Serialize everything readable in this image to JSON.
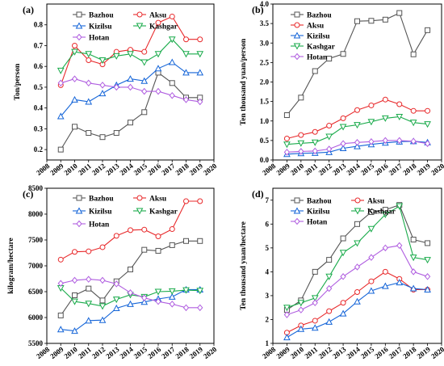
{
  "chart_data": [
    {
      "panel": "(a)",
      "type": "line",
      "ylabel": "Ton/person",
      "xlim": [
        2008,
        2020
      ],
      "ylim": [
        0.15,
        0.9
      ],
      "xticks": [
        2008,
        2009,
        2010,
        2011,
        2012,
        2013,
        2014,
        2015,
        2016,
        2017,
        2018,
        2019,
        2020
      ],
      "yticks": [
        0.2,
        0.3,
        0.4,
        0.5,
        0.6,
        0.7,
        0.8
      ],
      "ytick_labels": [
        "0.2",
        "0.3",
        "0.4",
        "0.5",
        "0.6",
        "0.7",
        "0.8"
      ],
      "x": [
        2009,
        2010,
        2011,
        2012,
        2013,
        2014,
        2015,
        2016,
        2017,
        2018,
        2019
      ],
      "series": [
        {
          "name": "Bazhou",
          "color": "#555555",
          "marker": "square",
          "values": [
            0.2,
            0.31,
            0.28,
            0.26,
            0.28,
            0.33,
            0.38,
            0.57,
            0.52,
            0.45,
            0.45
          ]
        },
        {
          "name": "Aksu",
          "color": "#e8292b",
          "marker": "circle",
          "values": [
            0.51,
            0.7,
            0.63,
            0.61,
            0.67,
            0.68,
            0.67,
            0.81,
            0.84,
            0.73,
            0.73
          ]
        },
        {
          "name": "Kizilsu",
          "color": "#1565d8",
          "marker": "triangle",
          "values": [
            0.36,
            0.44,
            0.43,
            0.47,
            0.51,
            0.54,
            0.53,
            0.59,
            0.62,
            0.57,
            0.57
          ]
        },
        {
          "name": "Kashgar",
          "color": "#1aab4b",
          "marker": "triangle-down",
          "values": [
            0.58,
            0.67,
            0.66,
            0.63,
            0.65,
            0.66,
            0.62,
            0.66,
            0.73,
            0.66,
            0.66
          ]
        },
        {
          "name": "Hotan",
          "color": "#b05ee0",
          "marker": "diamond",
          "values": [
            0.52,
            0.54,
            0.52,
            0.51,
            0.5,
            0.5,
            0.48,
            0.48,
            0.46,
            0.44,
            0.43
          ]
        }
      ],
      "legend": {
        "placement": "top-center",
        "rows": [
          [
            "Bazhou",
            "Aksu"
          ],
          [
            "Kizilsu",
            "Kashgar"
          ],
          [
            "Hotan"
          ]
        ]
      }
    },
    {
      "panel": "(b)",
      "type": "line",
      "ylabel": "Ten thousand yuan/person",
      "xlim": [
        2008,
        2020
      ],
      "ylim": [
        0,
        4
      ],
      "xticks": [
        2008,
        2009,
        2010,
        2011,
        2012,
        2013,
        2014,
        2015,
        2016,
        2017,
        2018,
        2019,
        2020
      ],
      "yticks": [
        0,
        0.5,
        1,
        1.5,
        2,
        2.5,
        3,
        3.5,
        4
      ],
      "ytick_labels": [
        "0.0",
        "0.5",
        "1.0",
        "1.5",
        "2.0",
        "2.5",
        "3.0",
        "3.5",
        "4.0"
      ],
      "x": [
        2009,
        2010,
        2011,
        2012,
        2013,
        2014,
        2015,
        2016,
        2017,
        2018,
        2019
      ],
      "series": [
        {
          "name": "Bazhou",
          "color": "#555555",
          "marker": "square",
          "values": [
            1.15,
            1.6,
            2.28,
            2.6,
            2.72,
            3.56,
            3.57,
            3.6,
            3.77,
            2.71,
            3.33
          ]
        },
        {
          "name": "Aksu",
          "color": "#e8292b",
          "marker": "circle",
          "values": [
            0.55,
            0.64,
            0.72,
            0.88,
            1.07,
            1.28,
            1.4,
            1.55,
            1.43,
            1.26,
            1.26
          ]
        },
        {
          "name": "Kizilsu",
          "color": "#1565d8",
          "marker": "triangle",
          "values": [
            0.15,
            0.17,
            0.18,
            0.2,
            0.3,
            0.35,
            0.4,
            0.44,
            0.47,
            0.48,
            0.45
          ]
        },
        {
          "name": "Kashgar",
          "color": "#1aab4b",
          "marker": "triangle-down",
          "values": [
            0.4,
            0.43,
            0.45,
            0.6,
            0.85,
            0.9,
            0.98,
            1.07,
            1.11,
            0.96,
            0.92
          ]
        },
        {
          "name": "Hotan",
          "color": "#b05ee0",
          "marker": "diamond",
          "values": [
            0.2,
            0.22,
            0.23,
            0.28,
            0.42,
            0.45,
            0.47,
            0.5,
            0.5,
            0.48,
            0.42
          ]
        }
      ],
      "legend": {
        "placement": "top-left",
        "rows": [
          [
            "Bazhou"
          ],
          [
            "Aksu"
          ],
          [
            "Kizilsu"
          ],
          [
            "Kashgar"
          ],
          [
            "Hotan"
          ]
        ]
      }
    },
    {
      "panel": "(c)",
      "type": "line",
      "ylabel": "kilogram/hectare",
      "xlim": [
        2008,
        2020
      ],
      "ylim": [
        5500,
        8500
      ],
      "xticks": [
        2008,
        2009,
        2010,
        2011,
        2012,
        2013,
        2014,
        2015,
        2016,
        2017,
        2018,
        2019,
        2020
      ],
      "yticks": [
        5500,
        6000,
        6500,
        7000,
        7500,
        8000,
        8500
      ],
      "ytick_labels": [
        "5500",
        "6000",
        "6500",
        "7000",
        "7500",
        "8000",
        "8500"
      ],
      "x": [
        2009,
        2010,
        2011,
        2012,
        2013,
        2014,
        2015,
        2016,
        2017,
        2018,
        2019
      ],
      "series": [
        {
          "name": "Bazhou",
          "color": "#555555",
          "marker": "square",
          "values": [
            6040,
            6430,
            6560,
            6330,
            6700,
            6930,
            7310,
            7290,
            7400,
            7480,
            7480
          ]
        },
        {
          "name": "Aksu",
          "color": "#e8292b",
          "marker": "circle",
          "values": [
            7120,
            7270,
            7280,
            7360,
            7580,
            7690,
            7700,
            7570,
            7710,
            8250,
            8250
          ]
        },
        {
          "name": "Kizilsu",
          "color": "#1565d8",
          "marker": "triangle",
          "values": [
            5770,
            5740,
            5940,
            5950,
            6180,
            6260,
            6300,
            6360,
            6400,
            6540,
            6540
          ]
        },
        {
          "name": "Kashgar",
          "color": "#1aab4b",
          "marker": "triangle-down",
          "values": [
            6570,
            6310,
            6270,
            6220,
            6350,
            6440,
            6400,
            6500,
            6510,
            6530,
            6520
          ]
        },
        {
          "name": "Hotan",
          "color": "#b05ee0",
          "marker": "diamond",
          "values": [
            6660,
            6720,
            6740,
            6720,
            6650,
            6480,
            6380,
            6310,
            6260,
            6190,
            6190
          ]
        }
      ],
      "legend": {
        "placement": "top-center",
        "rows": [
          [
            "Bazhou",
            "Aksu"
          ],
          [
            "Kizilsu",
            "Kashgar"
          ],
          [
            "Hotan"
          ]
        ]
      }
    },
    {
      "panel": "(d)",
      "type": "line",
      "ylabel": "Ten thousand yuan/hectare",
      "xlim": [
        2008,
        2020
      ],
      "ylim": [
        1,
        7.5
      ],
      "xticks": [
        2008,
        2009,
        2010,
        2011,
        2012,
        2013,
        2014,
        2015,
        2016,
        2017,
        2018,
        2019,
        2020
      ],
      "yticks": [
        1,
        2,
        3,
        4,
        5,
        6,
        7
      ],
      "ytick_labels": [
        "1",
        "2",
        "3",
        "4",
        "5",
        "6",
        "7"
      ],
      "x": [
        2009,
        2010,
        2011,
        2012,
        2013,
        2014,
        2015,
        2016,
        2017,
        2018,
        2019
      ],
      "series": [
        {
          "name": "Bazhou",
          "color": "#555555",
          "marker": "square",
          "values": [
            2.4,
            2.8,
            4.0,
            4.5,
            5.4,
            6.0,
            6.5,
            6.6,
            6.8,
            5.35,
            5.2
          ]
        },
        {
          "name": "Aksu",
          "color": "#e8292b",
          "marker": "circle",
          "values": [
            1.45,
            1.75,
            1.95,
            2.35,
            2.7,
            3.15,
            3.6,
            4.0,
            3.7,
            3.25,
            3.25
          ]
        },
        {
          "name": "Kizilsu",
          "color": "#1565d8",
          "marker": "triangle",
          "values": [
            1.25,
            1.6,
            1.65,
            1.9,
            2.25,
            2.75,
            3.2,
            3.4,
            3.55,
            3.3,
            3.25
          ]
        },
        {
          "name": "Kashgar",
          "color": "#1aab4b",
          "marker": "triangle-down",
          "values": [
            2.5,
            2.7,
            2.9,
            3.8,
            4.8,
            5.2,
            5.8,
            6.4,
            6.75,
            4.6,
            4.5
          ]
        },
        {
          "name": "Hotan",
          "color": "#b05ee0",
          "marker": "diamond",
          "values": [
            2.2,
            2.4,
            2.7,
            3.3,
            3.8,
            4.2,
            4.6,
            5.0,
            5.1,
            4.0,
            3.8
          ]
        }
      ],
      "legend": {
        "placement": "top-center",
        "rows": [
          [
            "Bazhou",
            "Aksu"
          ],
          [
            "Kizilsu",
            "Kashgar"
          ],
          [
            "Hotan"
          ]
        ]
      }
    }
  ]
}
